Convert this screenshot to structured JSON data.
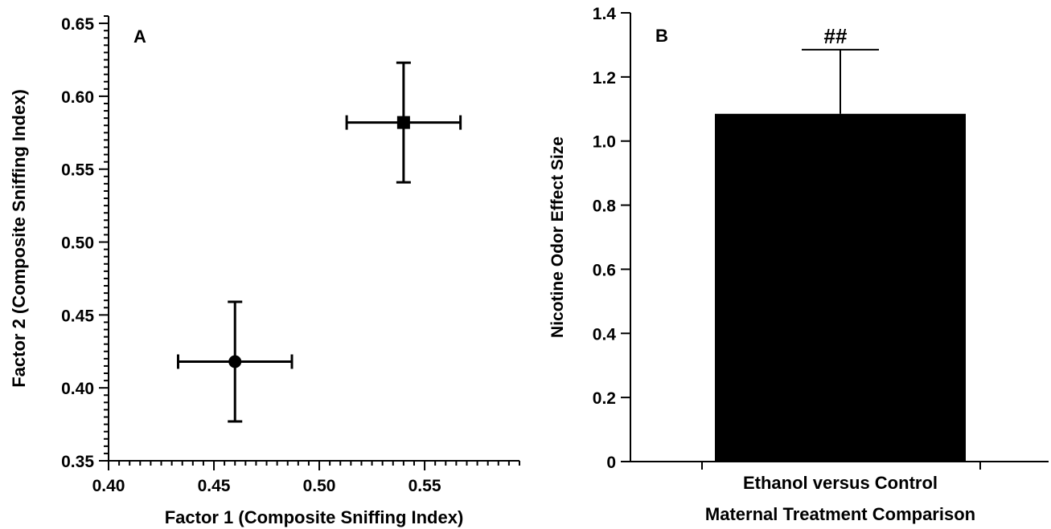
{
  "chart_data": [
    {
      "panel": "A",
      "type": "scatter",
      "title": "",
      "xlabel": "Factor 1 (Composite Sniffing Index)",
      "ylabel": "Factor 2 (Composite Sniffing Index)",
      "xlim": [
        0.4,
        0.595
      ],
      "ylim": [
        0.35,
        0.655
      ],
      "x_ticks": [
        0.4,
        0.45,
        0.5,
        0.55
      ],
      "x_tick_labels": [
        "0.40",
        "0.45",
        "0.50",
        "0.55"
      ],
      "y_ticks": [
        0.35,
        0.4,
        0.45,
        0.5,
        0.55,
        0.6,
        0.65
      ],
      "y_tick_labels": [
        "0.35",
        "0.40",
        "0.45",
        "0.50",
        "0.55",
        "0.60",
        "0.65"
      ],
      "grid": false,
      "points": [
        {
          "marker": "circle",
          "x": 0.46,
          "y": 0.418,
          "x_err": 0.027,
          "y_err": 0.041
        },
        {
          "marker": "square",
          "x": 0.54,
          "y": 0.582,
          "x_err": 0.027,
          "y_err": 0.041
        }
      ]
    },
    {
      "panel": "B",
      "type": "bar",
      "title": "",
      "xlabel": "Maternal Treatment Comparison",
      "ylabel": "Nicotine Odor Effect Size",
      "categories": [
        "Ethanol versus Control"
      ],
      "values": [
        1.085
      ],
      "errors": [
        0.2
      ],
      "annotations": [
        "##"
      ],
      "ylim": [
        0,
        1.4
      ],
      "y_ticks": [
        0,
        0.2,
        0.4,
        0.6,
        0.8,
        1.0,
        1.2,
        1.4
      ],
      "y_tick_labels": [
        "0",
        "0.2",
        "0.4",
        "0.6",
        "0.8",
        "1.0",
        "1.2",
        "1.4"
      ],
      "grid": false,
      "bar_color": "#000000"
    }
  ]
}
